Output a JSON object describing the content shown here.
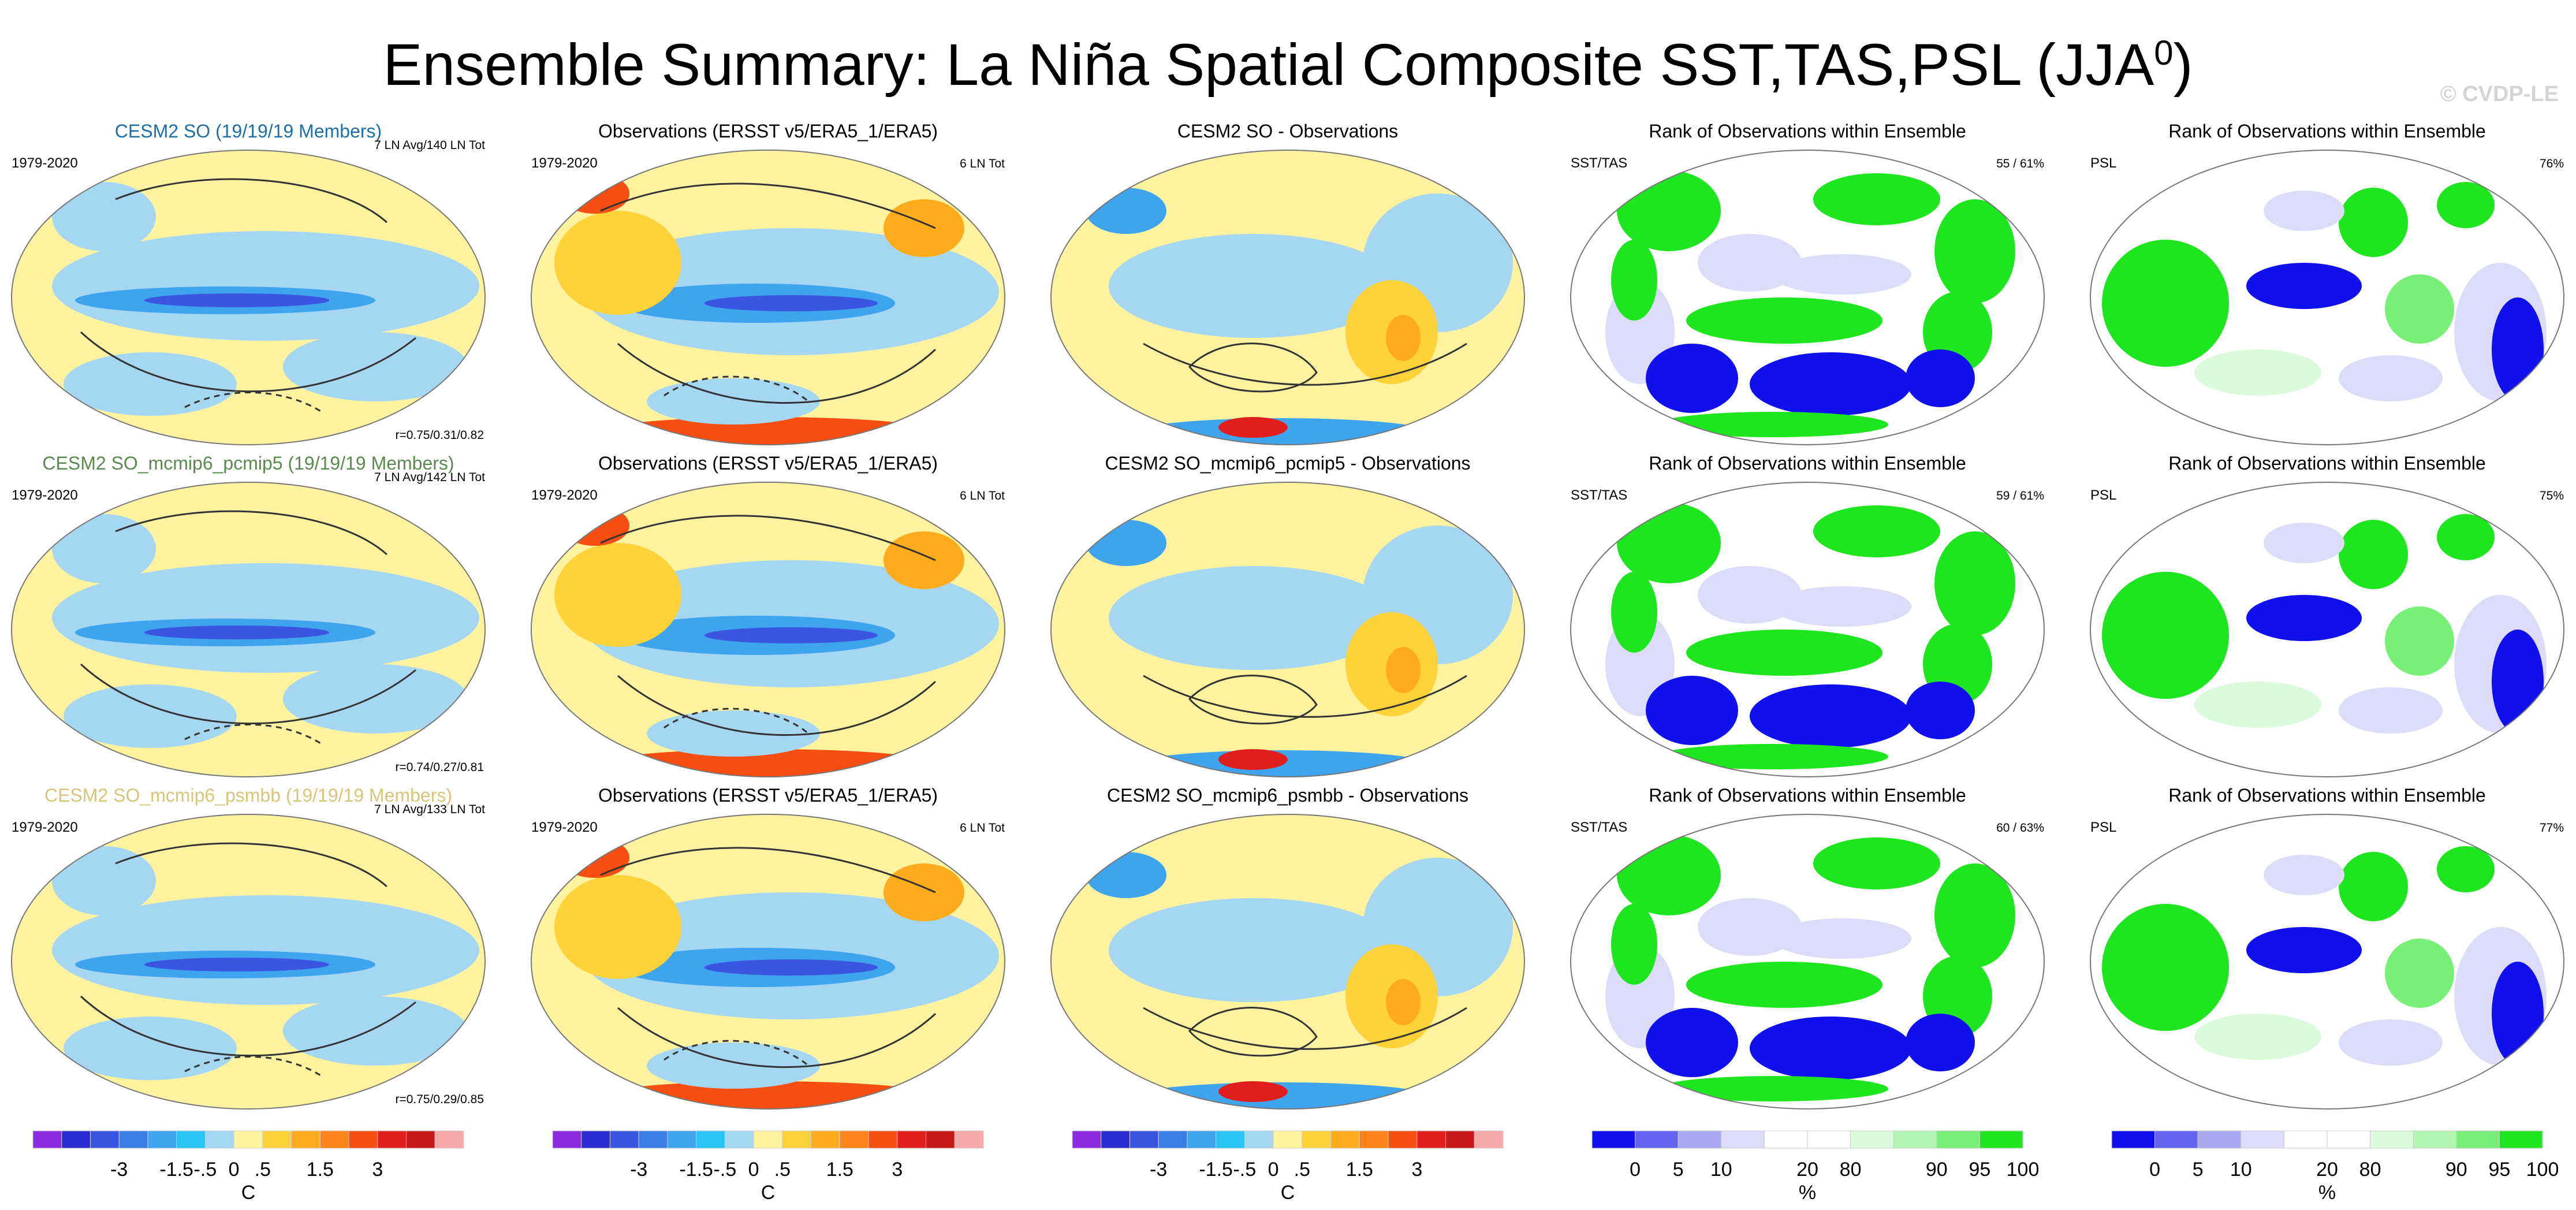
{
  "title": {
    "main": "Ensemble Summary: La Niña Spatial Composite SST,TAS,PSL (JJA",
    "superscript": "0",
    "tail": ")"
  },
  "watermark": "© CVDP-LE",
  "chart_data": {
    "type": "heatmap",
    "rows": [
      {
        "model": "CESM2 SO (19/19/19 Members)",
        "model_color": "#1e6fa8",
        "period": "1979-2020",
        "ensemble_info": "7 LN Avg/140 LN Tot",
        "correlation": "r=0.75/0.31/0.82",
        "obs_title": "Observations (ERSST v5/ERA5_1/ERA5)",
        "obs_period": "1979-2020",
        "obs_info": "6 LN Tot",
        "diff_title": "CESM2 SO - Observations",
        "rank_sst_title": "Rank of Observations within Ensemble",
        "rank_sst_label": "SST/TAS",
        "rank_sst_pct": "55 /  61%",
        "rank_psl_title": "Rank of Observations within Ensemble",
        "rank_psl_label": "PSL",
        "rank_psl_pct": "76%"
      },
      {
        "model": "CESM2 SO_mcmip6_pcmip5 (19/19/19 Members)",
        "model_color": "#5a8a4e",
        "period": "1979-2020",
        "ensemble_info": "7 LN Avg/142 LN Tot",
        "correlation": "r=0.74/0.27/0.81",
        "obs_title": "Observations (ERSST v5/ERA5_1/ERA5)",
        "obs_period": "1979-2020",
        "obs_info": "6 LN Tot",
        "diff_title": "CESM2 SO_mcmip6_pcmip5 - Observations",
        "rank_sst_title": "Rank of Observations within Ensemble",
        "rank_sst_label": "SST/TAS",
        "rank_sst_pct": "59 /  61%",
        "rank_psl_title": "Rank of Observations within Ensemble",
        "rank_psl_label": "PSL",
        "rank_psl_pct": "75%"
      },
      {
        "model": "CESM2 SO_mcmip6_psmbb (19/19/19 Members)",
        "model_color": "#d8c47a",
        "period": "1979-2020",
        "ensemble_info": "7 LN Avg/133 LN Tot",
        "correlation": "r=0.75/0.29/0.85",
        "obs_title": "Observations (ERSST v5/ERA5_1/ERA5)",
        "obs_period": "1979-2020",
        "obs_info": "6 LN Tot",
        "diff_title": "CESM2 SO_mcmip6_psmbb - Observations",
        "rank_sst_title": "Rank of Observations within Ensemble",
        "rank_sst_label": "SST/TAS",
        "rank_sst_pct": "60 /  63%",
        "rank_psl_title": "Rank of Observations within Ensemble",
        "rank_psl_label": "PSL",
        "rank_psl_pct": "77%"
      }
    ],
    "colorbars": {
      "temperature": {
        "unit": "C",
        "colors": [
          "#8a2be2",
          "#2b2bd6",
          "#3a55e0",
          "#3c7ee8",
          "#3ea4ee",
          "#29c3f5",
          "#a6d7f2",
          "#fff3a0",
          "#ffd23a",
          "#ffab1c",
          "#ff8418",
          "#f94e12",
          "#e01e1e",
          "#c81818",
          "#f7a8a8"
        ],
        "tick_labels": [
          "-3",
          "-1.5",
          "-.5",
          "0",
          ".5",
          "1.5",
          "3"
        ]
      },
      "rank": {
        "unit": "%",
        "colors": [
          "#1010ee",
          "#6464f0",
          "#a8a8f2",
          "#dcdcf8",
          "#ffffff",
          "#ffffff",
          "#dcfadc",
          "#b4f5b4",
          "#78f078",
          "#1ee61e"
        ],
        "tick_labels": [
          "0",
          "5",
          "10",
          "20",
          "80",
          "90",
          "95",
          "100"
        ]
      }
    }
  }
}
